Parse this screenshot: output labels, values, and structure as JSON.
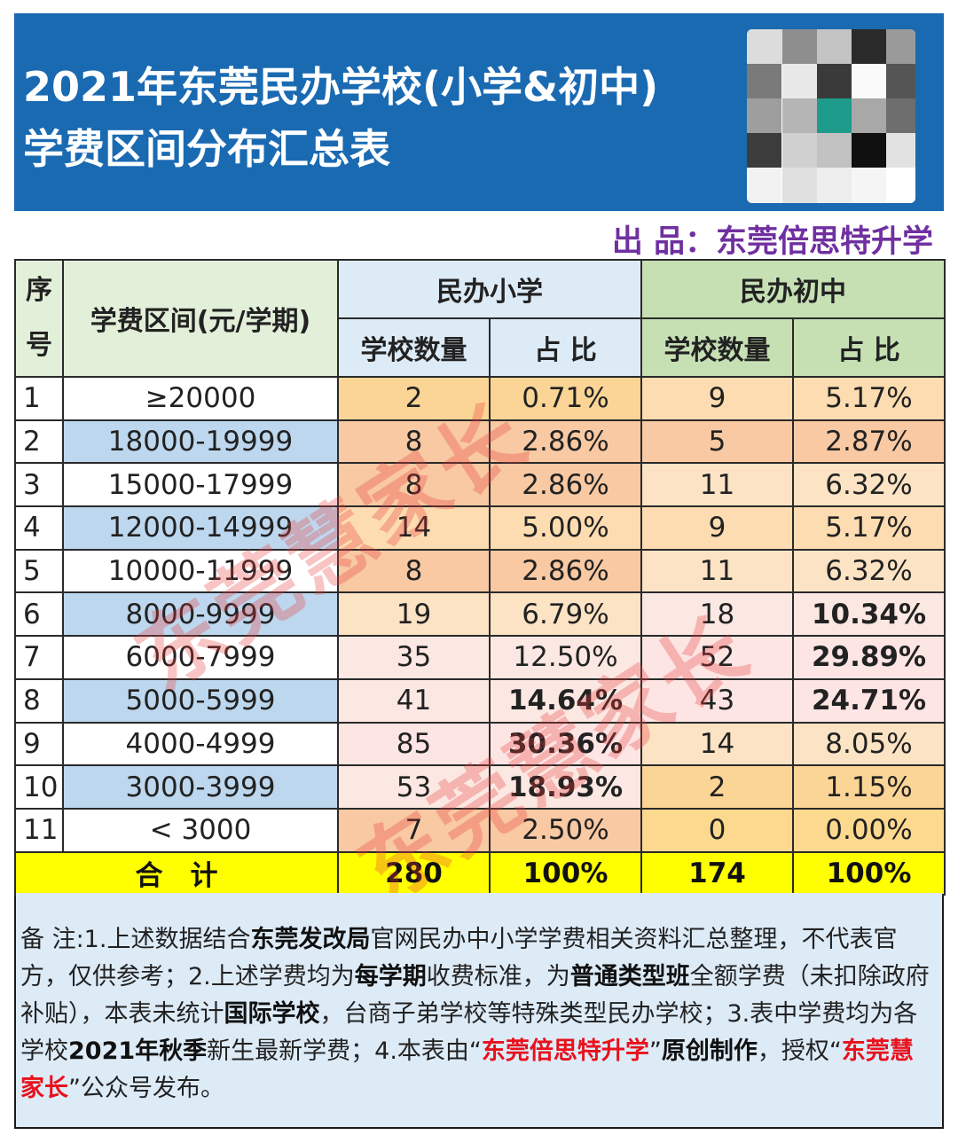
{
  "header": {
    "title_line1": "2021年东莞民办学校(小学&初中)",
    "title_line2": "学费区间分布汇总表",
    "producer": "出 品：东莞倍思特升学"
  },
  "table": {
    "col_seq": "序号",
    "col_seq_top": "序",
    "col_seq_bottom": "号",
    "col_range": "学费区间(元/学期)",
    "group_primary": "民办小学",
    "group_middle": "民办初中",
    "sub_count": "学校数量",
    "sub_ratio": "占 比",
    "rows": [
      {
        "seq": "1",
        "range": "≥20000",
        "p_count": "2",
        "p_ratio": "0.71%",
        "m_count": "9",
        "m_ratio": "5.17%"
      },
      {
        "seq": "2",
        "range": "18000-19999",
        "p_count": "8",
        "p_ratio": "2.86%",
        "m_count": "5",
        "m_ratio": "2.87%"
      },
      {
        "seq": "3",
        "range": "15000-17999",
        "p_count": "8",
        "p_ratio": "2.86%",
        "m_count": "11",
        "m_ratio": "6.32%"
      },
      {
        "seq": "4",
        "range": "12000-14999",
        "p_count": "14",
        "p_ratio": "5.00%",
        "m_count": "9",
        "m_ratio": "5.17%"
      },
      {
        "seq": "5",
        "range": "10000-11999",
        "p_count": "8",
        "p_ratio": "2.86%",
        "m_count": "11",
        "m_ratio": "6.32%"
      },
      {
        "seq": "6",
        "range": "8000-9999",
        "p_count": "19",
        "p_ratio": "6.79%",
        "m_count": "18",
        "m_ratio": "10.34%"
      },
      {
        "seq": "7",
        "range": "6000-7999",
        "p_count": "35",
        "p_ratio": "12.50%",
        "m_count": "52",
        "m_ratio": "29.89%"
      },
      {
        "seq": "8",
        "range": "5000-5999",
        "p_count": "41",
        "p_ratio": "14.64%",
        "m_count": "43",
        "m_ratio": "24.71%"
      },
      {
        "seq": "9",
        "range": "4000-4999",
        "p_count": "85",
        "p_ratio": "30.36%",
        "m_count": "14",
        "m_ratio": "8.05%"
      },
      {
        "seq": "10",
        "range": "3000-3999",
        "p_count": "53",
        "p_ratio": "18.93%",
        "m_count": "2",
        "m_ratio": "1.15%"
      },
      {
        "seq": "11",
        "range": "< 3000",
        "p_count": "7",
        "p_ratio": "2.50%",
        "m_count": "0",
        "m_ratio": "0.00%"
      }
    ],
    "total": {
      "label": "合　计",
      "p_count": "280",
      "p_ratio": "100%",
      "m_count": "174",
      "m_ratio": "100%"
    }
  },
  "colors": {
    "banner": "#1a6ab2",
    "producer": "#7030a0",
    "highlight_red": "#e8111c",
    "total_row": "#ffff00",
    "range_alt": "#bdd7ee"
  },
  "watermark": {
    "text1": "东莞慧家长",
    "text2": "东莞慧家长"
  },
  "note": {
    "t1": "备 注:1.上述数据结合",
    "b1": "东莞发改局",
    "t2": "官网民办中小学学费相关资料汇总整理，不代表官方，仅供参考；2.上述学费均为",
    "b2": "每学期",
    "t3": "收费标准，为",
    "b3": "普通类型班",
    "t4": "全额学费（未扣除政府补贴），本表未统计",
    "b4": "国际学校",
    "t5": "，台商子弟学校等特殊类型民办学校；3.表中学费均为各学校",
    "b5": "2021年秋季",
    "t6": "新生最新学费；4.本表由“",
    "r1": "东莞倍思特升学",
    "t7": "”",
    "b6": "原创制作",
    "t8": "，授权“",
    "r2": "东莞慧家长",
    "t9": "”公众号发布。"
  }
}
